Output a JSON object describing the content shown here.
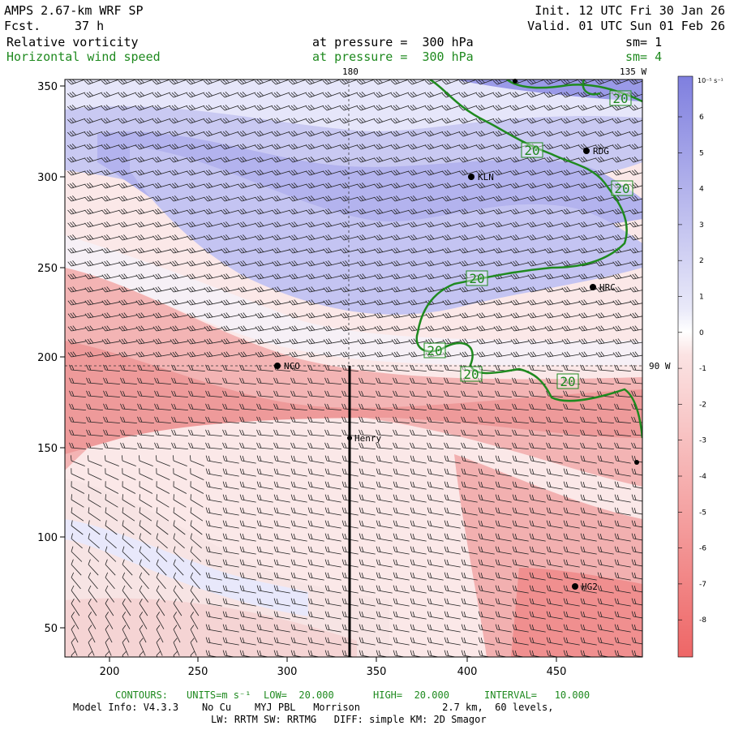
{
  "header": {
    "model": "AMPS 2.67-km WRF SP",
    "fcst_label": "Fcst.",
    "fcst_value": "37 h",
    "init": "Init. 12 UTC Fri 30 Jan 26",
    "valid": "Valid. 01 UTC Sun 01 Feb 26",
    "field1": "Relative vorticity",
    "field1_level": "at pressure =  300 hPa",
    "field1_sm": "sm= 1",
    "field2": "Horizontal wind speed",
    "field2_level": "at pressure =  300 hPa",
    "field2_sm": "sm= 4"
  },
  "map": {
    "x_ticks": [
      "200",
      "250",
      "300",
      "350",
      "400",
      "450"
    ],
    "y_ticks": [
      "350",
      "300",
      "250",
      "200",
      "150",
      "100",
      "50"
    ],
    "lon_label_top_1": "180",
    "lon_label_top_2": "135 W",
    "lat_label_right": "90 W",
    "cross_section_label": "Henry",
    "stations": [
      {
        "name": "KLN"
      },
      {
        "name": "RDG"
      },
      {
        "name": "HRC"
      },
      {
        "name": "NCO"
      },
      {
        "name": "HG2"
      }
    ],
    "contour_labels": [
      "20",
      "20",
      "20",
      "20",
      "20",
      "20",
      "20"
    ],
    "colors": {
      "positive": "#8c8ce6",
      "negative": "#ee6e6e",
      "contour": "#1f8a1f"
    }
  },
  "colorbar": {
    "unit_label": "10⁻⁵ s⁻¹",
    "ticks": [
      "6",
      "5",
      "4",
      "3",
      "2",
      "1",
      "0",
      "-1",
      "-2",
      "-3",
      "-4",
      "-5",
      "-6",
      "-7",
      "-8"
    ]
  },
  "footer": {
    "contours_label": "CONTOURS:",
    "units": "UNITS=m s⁻¹",
    "low": "LOW=  20.000",
    "high": "HIGH=  20.000",
    "interval": "INTERVAL=   10.000",
    "model_info": "Model Info: V4.3.3    No Cu    MYJ PBL   Morrison              2.7 km,  60 levels,",
    "physics": "LW: RRTM SW: RRTMG   DIFF: simple KM: 2D Smagor"
  }
}
